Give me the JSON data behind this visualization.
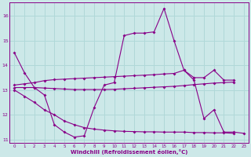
{
  "xlabel": "Windchill (Refroidissement éolien,°C)",
  "background_color": "#cce8e8",
  "grid_color": "#b0d8d8",
  "line_color": "#880088",
  "line1_x": [
    0,
    1,
    2,
    3,
    4,
    5,
    6,
    7,
    8,
    9,
    10,
    11,
    12,
    13,
    14,
    15,
    16,
    17,
    18,
    19,
    20,
    21,
    22,
    23
  ],
  "line1_y": [
    14.5,
    13.7,
    13.1,
    12.8,
    11.6,
    11.3,
    11.1,
    11.15,
    12.3,
    13.2,
    13.3,
    15.2,
    15.3,
    15.3,
    15.35,
    16.3,
    15.0,
    13.8,
    13.4,
    11.85,
    12.2,
    11.3,
    11.3,
    11.25
  ],
  "line2_x": [
    0,
    1,
    2,
    3,
    4,
    5,
    6,
    7,
    8,
    9,
    10,
    11,
    12,
    13,
    14,
    15,
    16,
    17,
    18,
    19,
    20,
    21,
    22
  ],
  "line2_y": [
    13.2,
    13.25,
    13.3,
    13.38,
    13.42,
    13.44,
    13.46,
    13.48,
    13.5,
    13.52,
    13.54,
    13.56,
    13.58,
    13.6,
    13.62,
    13.65,
    13.67,
    13.8,
    13.5,
    13.5,
    13.8,
    13.4,
    13.4
  ],
  "line3_x": [
    0,
    1,
    2,
    3,
    4,
    5,
    6,
    7,
    8,
    9,
    10,
    11,
    12,
    13,
    14,
    15,
    16,
    17,
    18,
    19,
    20,
    21,
    22
  ],
  "line3_y": [
    13.1,
    13.1,
    13.1,
    13.08,
    13.06,
    13.04,
    13.02,
    13.02,
    13.02,
    13.02,
    13.03,
    13.05,
    13.07,
    13.09,
    13.11,
    13.13,
    13.15,
    13.18,
    13.22,
    13.25,
    13.28,
    13.3,
    13.32
  ],
  "line4_x": [
    0,
    1,
    2,
    3,
    4,
    5,
    6,
    7,
    8,
    9,
    10,
    11,
    12,
    13,
    14,
    15,
    16,
    17,
    18,
    19,
    20,
    21,
    22
  ],
  "line4_y": [
    13.0,
    12.75,
    12.5,
    12.2,
    12.0,
    11.75,
    11.6,
    11.48,
    11.42,
    11.38,
    11.35,
    11.33,
    11.32,
    11.31,
    11.31,
    11.3,
    11.3,
    11.3,
    11.28,
    11.28,
    11.27,
    11.27,
    11.25
  ],
  "ylim": [
    10.85,
    16.55
  ],
  "yticks": [
    11,
    12,
    13,
    14,
    15,
    16
  ],
  "xticks": [
    0,
    1,
    2,
    3,
    4,
    5,
    6,
    7,
    8,
    9,
    10,
    11,
    12,
    13,
    14,
    15,
    16,
    17,
    18,
    19,
    20,
    21,
    22,
    23
  ],
  "marker_size": 2.0,
  "linewidth": 0.8
}
